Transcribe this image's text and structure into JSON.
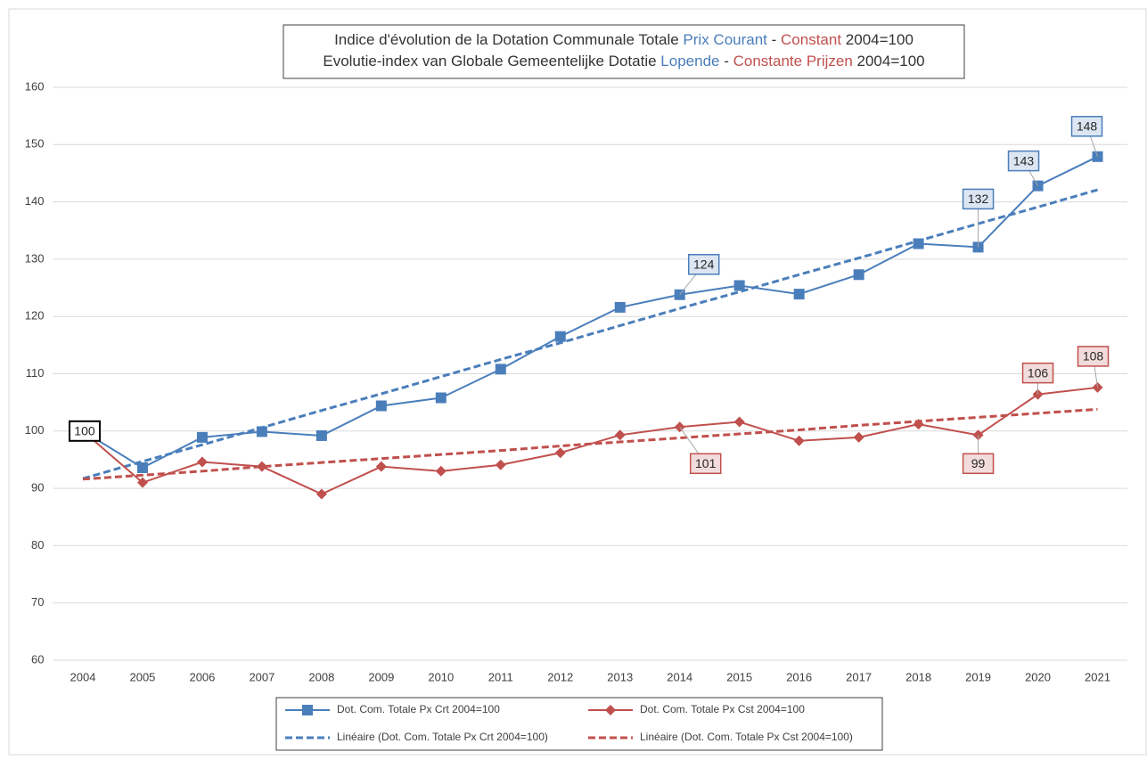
{
  "chart_data": {
    "type": "line",
    "title_lines": [
      [
        {
          "text": "Indice d'évolution de la Dotation Communale Totale ",
          "color": "#333333"
        },
        {
          "text": "Prix Courant",
          "color": "#4a7ebb"
        },
        {
          "text": " - ",
          "color": "#333333"
        },
        {
          "text": "Constant",
          "color": "#c0504d"
        },
        {
          "text": " 2004=100",
          "color": "#333333"
        }
      ],
      [
        {
          "text": "Evolutie-index van Globale Gemeentelijke Dotatie ",
          "color": "#333333"
        },
        {
          "text": "Lopende",
          "color": "#4a7ebb"
        },
        {
          "text": " - ",
          "color": "#333333"
        },
        {
          "text": "Constante Prijzen",
          "color": "#c0504d"
        },
        {
          "text": " 2004=100",
          "color": "#333333"
        }
      ]
    ],
    "categories": [
      "2004",
      "2005",
      "2006",
      "2007",
      "2008",
      "2009",
      "2010",
      "2011",
      "2012",
      "2013",
      "2014",
      "2015",
      "2016",
      "2017",
      "2018",
      "2019",
      "2020",
      "2021"
    ],
    "series": [
      {
        "name": "Dot. Com. Totale Px Crt 2004=100",
        "color": "#4a7ebb",
        "marker": "square",
        "style": "solid",
        "values": [
          100,
          93.6,
          98.9,
          99.9,
          99.2,
          104.4,
          105.8,
          110.8,
          116.5,
          121.6,
          123.8,
          125.4,
          123.9,
          127.3,
          132.7,
          132.1,
          142.8,
          147.9
        ],
        "value_labels": [
          null,
          null,
          null,
          null,
          null,
          null,
          null,
          null,
          null,
          null,
          "124",
          null,
          null,
          null,
          null,
          "132",
          "143",
          "148"
        ]
      },
      {
        "name": "Dot. Com. Totale Px Cst 2004=100",
        "color": "#c0504d",
        "marker": "diamond",
        "style": "solid",
        "values": [
          100,
          91.0,
          94.6,
          93.8,
          89.0,
          93.8,
          93.0,
          94.1,
          96.2,
          99.3,
          100.7,
          101.6,
          98.3,
          98.9,
          101.2,
          99.3,
          106.4,
          107.6
        ],
        "value_labels": [
          "100",
          null,
          null,
          null,
          null,
          null,
          null,
          null,
          null,
          null,
          "101",
          null,
          null,
          null,
          null,
          "99",
          "106",
          "108"
        ]
      },
      {
        "name": "Linéaire (Dot. Com. Totale Px Crt 2004=100)",
        "color": "#4a7ebb",
        "marker": "none",
        "style": "dashed",
        "values": [
          91.7,
          94.7,
          97.6,
          100.6,
          103.6,
          106.5,
          109.5,
          112.5,
          115.4,
          118.4,
          121.4,
          124.3,
          127.3,
          130.2,
          133.2,
          136.2,
          139.1,
          142.1
        ]
      },
      {
        "name": "Linéaire (Dot. Com. Totale Px Cst 2004=100)",
        "color": "#c0504d",
        "marker": "none",
        "style": "dashed",
        "values": [
          91.6,
          92.3,
          93.0,
          93.8,
          94.5,
          95.2,
          95.9,
          96.6,
          97.4,
          98.1,
          98.8,
          99.5,
          100.2,
          101.0,
          101.7,
          102.4,
          103.1,
          103.8
        ]
      }
    ],
    "ylim": [
      60,
      160
    ],
    "yticks": [
      60,
      70,
      80,
      90,
      100,
      110,
      120,
      130,
      140,
      150,
      160
    ],
    "grid": true
  }
}
